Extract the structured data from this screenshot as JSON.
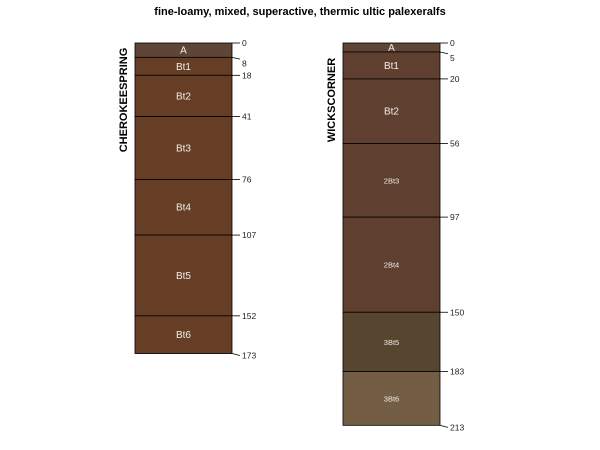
{
  "title": "fine-loamy, mixed, superactive, thermic ultic palexeralfs",
  "profiles": [
    {
      "name": "CHEROKEESPRING",
      "horizons": [
        {
          "name": "A",
          "top": 0,
          "bottom": 8,
          "color": "#5f4535"
        },
        {
          "name": "Bt1",
          "top": 8,
          "bottom": 18,
          "color": "#653e25"
        },
        {
          "name": "Bt2",
          "top": 18,
          "bottom": 41,
          "color": "#653e25"
        },
        {
          "name": "Bt3",
          "top": 41,
          "bottom": 76,
          "color": "#653e25"
        },
        {
          "name": "Bt4",
          "top": 76,
          "bottom": 107,
          "color": "#653e25"
        },
        {
          "name": "Bt5",
          "top": 107,
          "bottom": 152,
          "color": "#653e25"
        },
        {
          "name": "Bt6",
          "top": 152,
          "bottom": 173,
          "color": "#653e25"
        }
      ],
      "depth_labels": [
        "0",
        "8",
        "18",
        "41",
        "76",
        "107",
        "152",
        "173"
      ]
    },
    {
      "name": "WICKSCORNER",
      "horizons": [
        {
          "name": "A",
          "top": 0,
          "bottom": 5,
          "color": "#5f4535"
        },
        {
          "name": "Bt1",
          "top": 5,
          "bottom": 20,
          "color": "#5f4030"
        },
        {
          "name": "Bt2",
          "top": 20,
          "bottom": 56,
          "color": "#5f4030"
        },
        {
          "name": "2Bt3",
          "top": 56,
          "bottom": 97,
          "color": "#5f4030"
        },
        {
          "name": "2Bt4",
          "top": 97,
          "bottom": 150,
          "color": "#5f4030"
        },
        {
          "name": "3Bt5",
          "top": 150,
          "bottom": 183,
          "color": "#56452f"
        },
        {
          "name": "3Bt6",
          "top": 183,
          "bottom": 213,
          "color": "#735d44"
        }
      ],
      "depth_labels": [
        "0",
        "5",
        "20",
        "56",
        "97",
        "150",
        "183",
        "213"
      ]
    }
  ]
}
